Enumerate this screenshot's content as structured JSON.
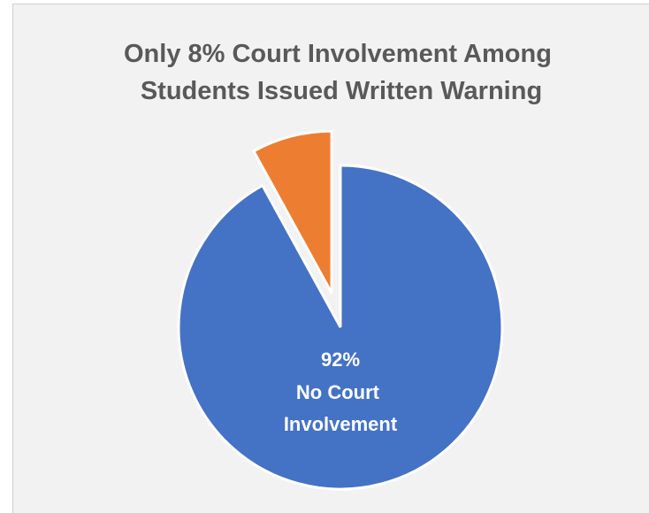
{
  "chart_data": {
    "type": "pie",
    "title": "Only 8% Court Involvement Among Students Issued Written Warning",
    "categories": [
      "No Court Involvement",
      null
    ],
    "values": [
      92,
      8
    ],
    "value_labels": [
      "92%",
      null
    ],
    "colors": [
      "#4472c4",
      "#ed7d31"
    ],
    "explode": [
      false,
      true
    ]
  }
}
